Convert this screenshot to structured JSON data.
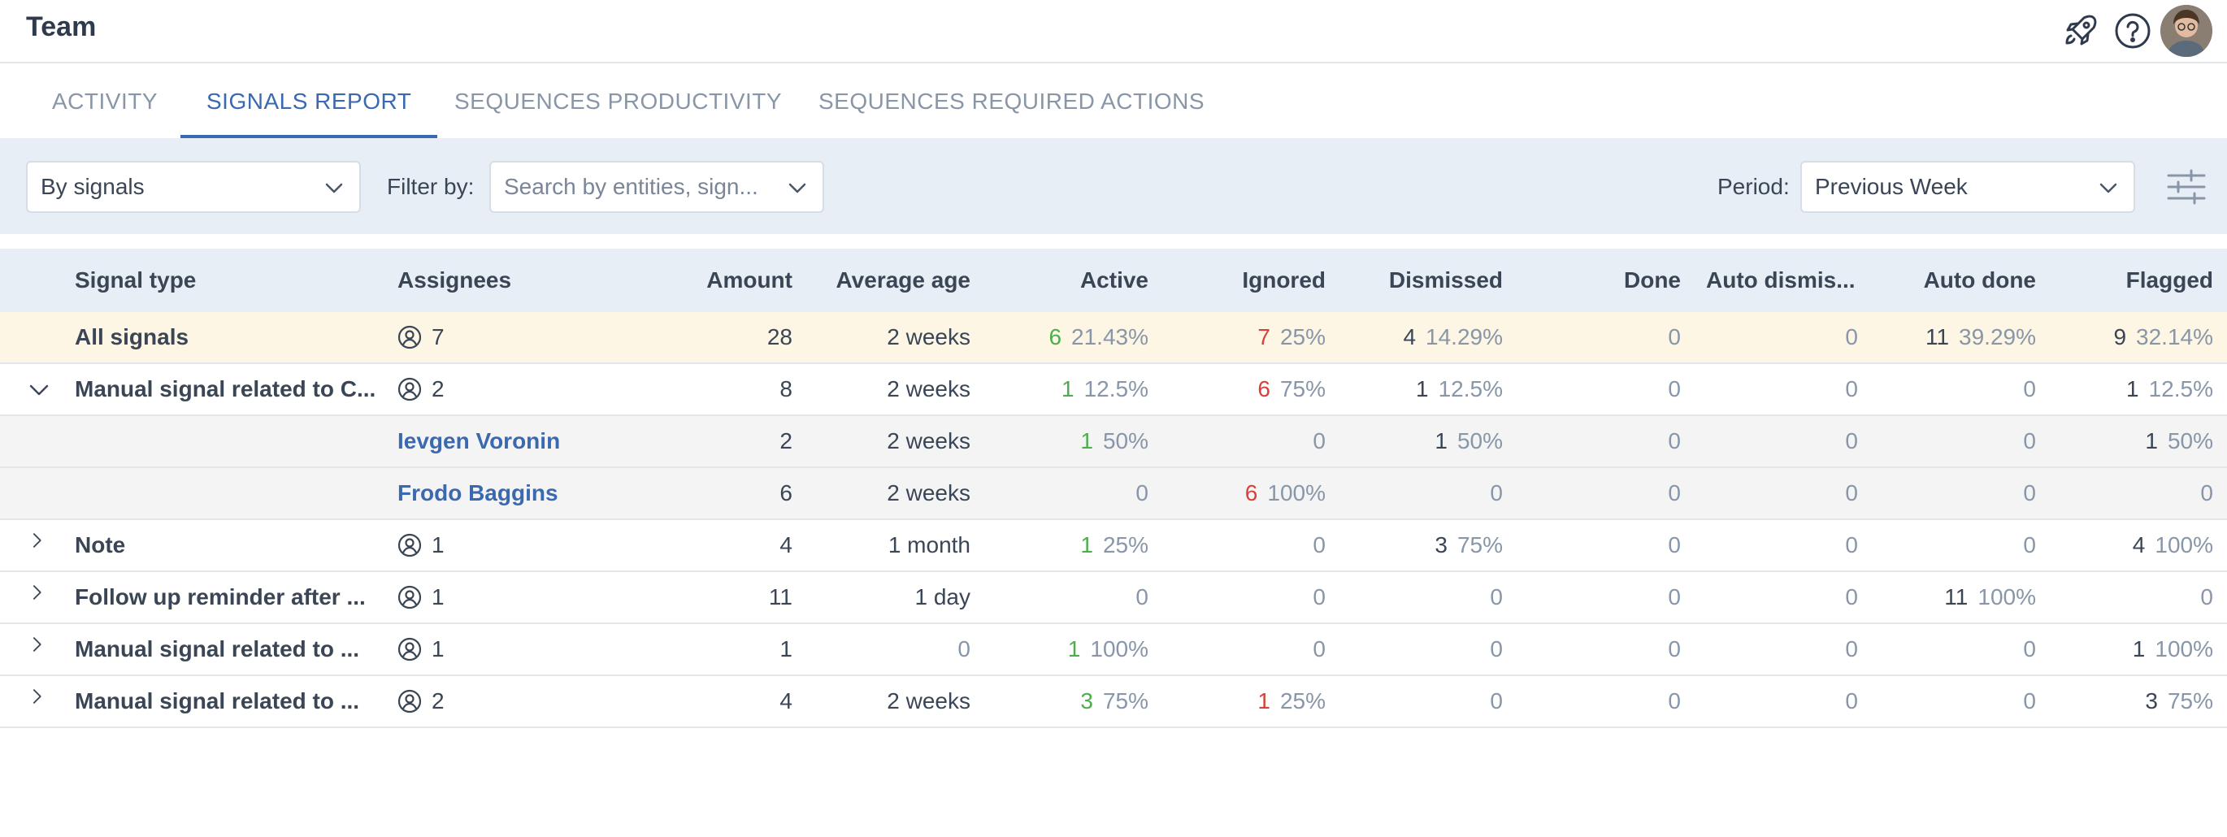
{
  "header": {
    "title": "Team",
    "icons": [
      "rocket-icon",
      "help-icon"
    ],
    "avatar": "user-avatar"
  },
  "tabs": [
    {
      "label": "ACTIVITY",
      "active": false
    },
    {
      "label": "SIGNALS REPORT",
      "active": true
    },
    {
      "label": "SEQUENCES PRODUCTIVITY",
      "active": false
    },
    {
      "label": "SEQUENCES REQUIRED ACTIONS",
      "active": false
    }
  ],
  "toolbar": {
    "group_by": "By signals",
    "filter_label": "Filter by:",
    "filter_placeholder": "Search by entities, sign...",
    "period_label": "Period:",
    "period_value": "Previous Week"
  },
  "table": {
    "columns": [
      "Signal type",
      "Assignees",
      "Amount",
      "Average age",
      "Active",
      "Ignored",
      "Dismissed",
      "Done",
      "Auto dismis...",
      "Auto done",
      "Flagged"
    ],
    "rows": [
      {
        "kind": "total",
        "toggle": "",
        "type": "All signals",
        "assignees": "7",
        "amount": "28",
        "age": "2 weeks",
        "active": [
          "6",
          "21.43%"
        ],
        "ignored": [
          "7",
          "25%"
        ],
        "dismissed": [
          "4",
          "14.29%"
        ],
        "done": [
          "0",
          ""
        ],
        "autodis": [
          "0",
          ""
        ],
        "autodone": [
          "11",
          "39.29%"
        ],
        "flagged": [
          "9",
          "32.14%"
        ]
      },
      {
        "kind": "group",
        "toggle": "open",
        "type": "Manual signal related to C...",
        "assignees": "2",
        "amount": "8",
        "age": "2 weeks",
        "active": [
          "1",
          "12.5%"
        ],
        "ignored": [
          "6",
          "75%"
        ],
        "dismissed": [
          "1",
          "12.5%"
        ],
        "done": [
          "0",
          ""
        ],
        "autodis": [
          "0",
          ""
        ],
        "autodone": [
          "0",
          ""
        ],
        "flagged": [
          "1",
          "12.5%"
        ]
      },
      {
        "kind": "sub",
        "toggle": "",
        "type": "",
        "person": "Ievgen Voronin",
        "amount": "2",
        "age": "2 weeks",
        "active": [
          "1",
          "50%"
        ],
        "ignored": [
          "0",
          ""
        ],
        "dismissed": [
          "1",
          "50%"
        ],
        "done": [
          "0",
          ""
        ],
        "autodis": [
          "0",
          ""
        ],
        "autodone": [
          "0",
          ""
        ],
        "flagged": [
          "1",
          "50%"
        ]
      },
      {
        "kind": "sub",
        "toggle": "",
        "type": "",
        "person": "Frodo Baggins",
        "amount": "6",
        "age": "2 weeks",
        "active": [
          "0",
          ""
        ],
        "ignored": [
          "6",
          "100%"
        ],
        "dismissed": [
          "0",
          ""
        ],
        "done": [
          "0",
          ""
        ],
        "autodis": [
          "0",
          ""
        ],
        "autodone": [
          "0",
          ""
        ],
        "flagged": [
          "0",
          ""
        ]
      },
      {
        "kind": "group",
        "toggle": "closed",
        "type": "Note",
        "assignees": "1",
        "amount": "4",
        "age": "1 month",
        "active": [
          "1",
          "25%"
        ],
        "ignored": [
          "0",
          ""
        ],
        "dismissed": [
          "3",
          "75%"
        ],
        "done": [
          "0",
          ""
        ],
        "autodis": [
          "0",
          ""
        ],
        "autodone": [
          "0",
          ""
        ],
        "flagged": [
          "4",
          "100%"
        ]
      },
      {
        "kind": "group",
        "toggle": "closed",
        "type": "Follow up reminder after ...",
        "assignees": "1",
        "amount": "11",
        "age": "1 day",
        "active": [
          "0",
          ""
        ],
        "ignored": [
          "0",
          ""
        ],
        "dismissed": [
          "0",
          ""
        ],
        "done": [
          "0",
          ""
        ],
        "autodis": [
          "0",
          ""
        ],
        "autodone": [
          "11",
          "100%"
        ],
        "flagged": [
          "0",
          ""
        ]
      },
      {
        "kind": "group",
        "toggle": "closed",
        "type": "Manual signal related to ...",
        "assignees": "1",
        "amount": "1",
        "age": "0",
        "active": [
          "1",
          "100%"
        ],
        "ignored": [
          "0",
          ""
        ],
        "dismissed": [
          "0",
          ""
        ],
        "done": [
          "0",
          ""
        ],
        "autodis": [
          "0",
          ""
        ],
        "autodone": [
          "0",
          ""
        ],
        "flagged": [
          "1",
          "100%"
        ]
      },
      {
        "kind": "group",
        "toggle": "closed",
        "type": "Manual signal related to ...",
        "assignees": "2",
        "amount": "4",
        "age": "2 weeks",
        "active": [
          "3",
          "75%"
        ],
        "ignored": [
          "1",
          "25%"
        ],
        "dismissed": [
          "0",
          ""
        ],
        "done": [
          "0",
          ""
        ],
        "autodis": [
          "0",
          ""
        ],
        "autodone": [
          "0",
          ""
        ],
        "flagged": [
          "3",
          "75%"
        ]
      }
    ]
  },
  "colors": {
    "accent": "#3a69b0",
    "positive": "#4cae4c",
    "negative": "#d9403a",
    "muted": "#8896a8"
  }
}
